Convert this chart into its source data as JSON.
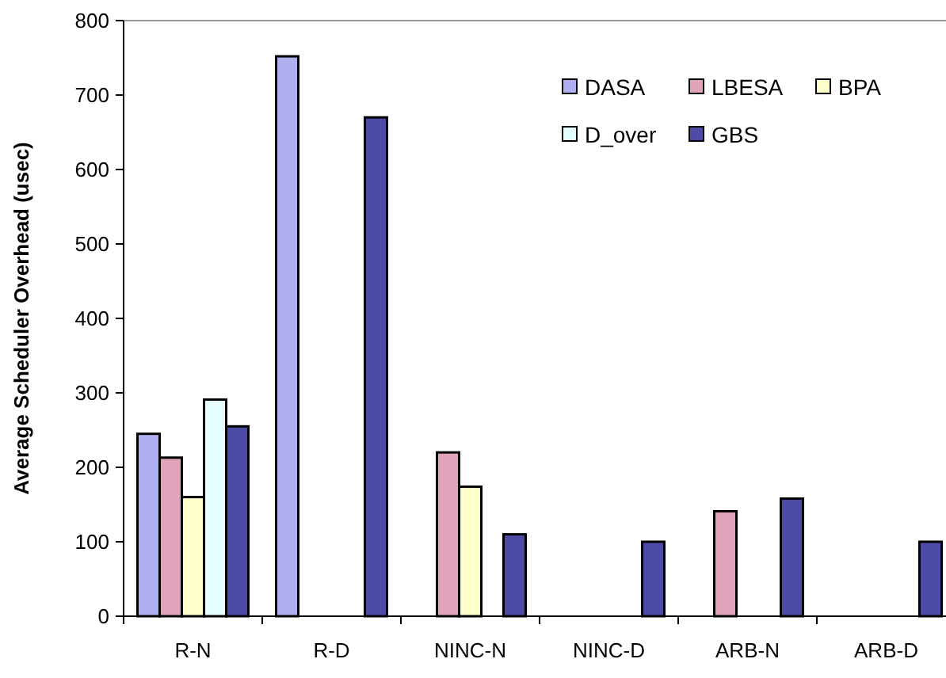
{
  "chart_data": {
    "type": "bar",
    "ylabel": "Average Scheduler Overhead (usec)",
    "categories": [
      "R-N",
      "R-D",
      "NINC-N",
      "NINC-D",
      "ARB-N",
      "ARB-D"
    ],
    "series": [
      {
        "name": "DASA",
        "color": "#b0b0f0",
        "values": [
          245,
          752,
          null,
          null,
          null,
          null
        ]
      },
      {
        "name": "LBESA",
        "color": "#e2a4bc",
        "values": [
          213,
          null,
          220,
          null,
          141,
          null
        ]
      },
      {
        "name": "BPA",
        "color": "#ffffcc",
        "values": [
          160,
          null,
          174,
          null,
          null,
          null
        ]
      },
      {
        "name": "D_over",
        "color": "#e4ffff",
        "values": [
          291,
          null,
          null,
          null,
          null,
          null
        ]
      },
      {
        "name": "GBS",
        "color": "#4c4ca8",
        "values": [
          255,
          670,
          110,
          100,
          158,
          100
        ]
      }
    ],
    "ylim": [
      0,
      800
    ],
    "yticks": [
      0,
      100,
      200,
      300,
      400,
      500,
      600,
      700,
      800
    ],
    "grid": false,
    "legend": "top right"
  }
}
